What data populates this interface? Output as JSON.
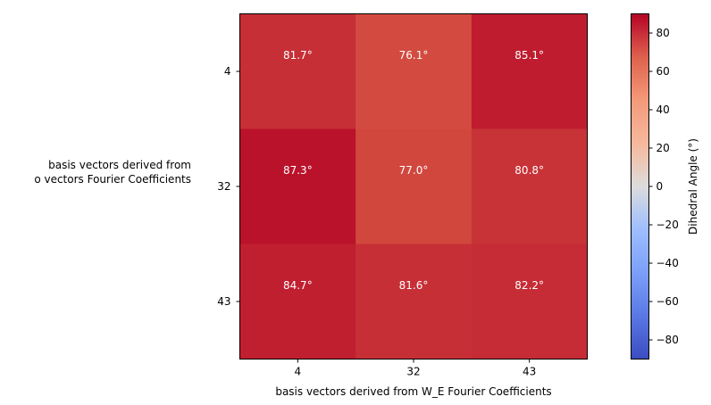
{
  "chart_data": {
    "type": "heatmap",
    "x_categories": [
      "4",
      "32",
      "43"
    ],
    "y_categories": [
      "4",
      "32",
      "43"
    ],
    "values": [
      [
        81.7,
        76.1,
        85.1
      ],
      [
        87.3,
        77.0,
        80.8
      ],
      [
        84.7,
        81.6,
        82.2
      ]
    ],
    "cell_labels": [
      [
        "81.7°",
        "76.1°",
        "85.1°"
      ],
      [
        "87.3°",
        "77.0°",
        "80.8°"
      ],
      [
        "84.7°",
        "81.6°",
        "82.2°"
      ]
    ],
    "xlabel": "basis vectors derived from W_E Fourier Coefficients",
    "ylabel_lines": [
      "basis vectors derived from",
      "o vectors Fourier Coefficients"
    ],
    "colorbar": {
      "label": "Dihedral Angle (°)",
      "colormap": "coolwarm",
      "range": [
        -90,
        90
      ],
      "ticks": [
        80,
        60,
        40,
        20,
        0,
        -20,
        -40,
        -60,
        -80
      ],
      "tick_labels": [
        "80",
        "60",
        "40",
        "20",
        "0",
        "−20",
        "−40",
        "−60",
        "−80"
      ]
    },
    "colors": {
      "cmap_low": "#3b4cc0",
      "cmap_mid": "#dddddd",
      "cmap_high": "#b40426"
    }
  }
}
